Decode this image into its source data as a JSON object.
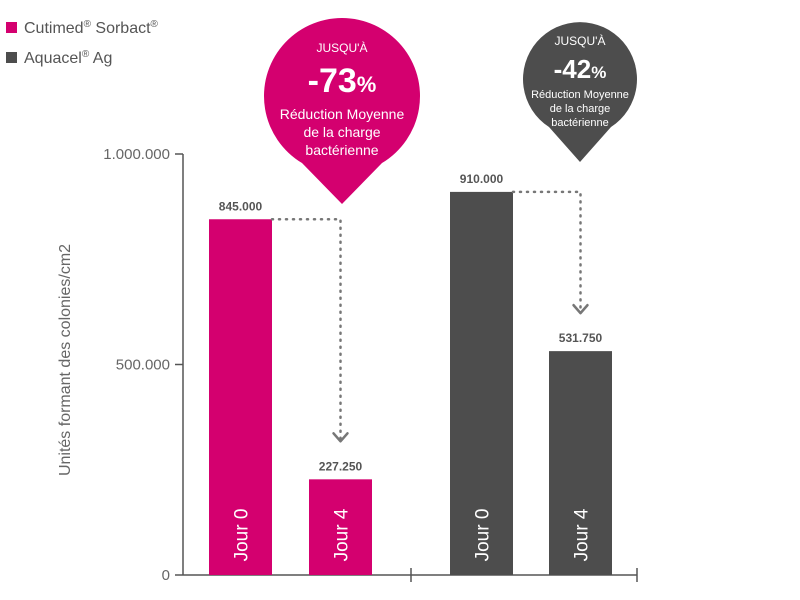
{
  "colors": {
    "pink": "#d4006f",
    "gray": "#4d4d4d",
    "axis": "#555555",
    "dots": "#777777"
  },
  "legend": [
    {
      "name": "Cutimed",
      "sup1": "®",
      "name2": " Sorbact",
      "sup2": "®",
      "color": "#d4006f"
    },
    {
      "name": "Aquacel",
      "sup1": "®",
      "name2": " Ag",
      "sup2": "",
      "color": "#4d4d4d"
    }
  ],
  "callouts": [
    {
      "top": "JUSQU'À",
      "value": "-73",
      "pct": "%",
      "lines": [
        "Réduction Moyenne",
        "de la charge",
        "bactérienne"
      ],
      "color": "#d4006f"
    },
    {
      "top": "JUSQU'À",
      "value": "-42",
      "pct": "%",
      "lines": [
        "Réduction Moyenne",
        "de la charge",
        "bactérienne"
      ],
      "color": "#4d4d4d"
    }
  ],
  "chart_data": {
    "type": "bar",
    "ylabel": "Unités formant des colonies/cm2",
    "ylim": [
      0,
      1000000
    ],
    "yticks": [
      {
        "value": 0,
        "label": "0"
      },
      {
        "value": 500000,
        "label": "500.000"
      },
      {
        "value": 1000000,
        "label": "1.000.000"
      }
    ],
    "groups": [
      {
        "series": "Cutimed® Sorbact®",
        "color": "#d4006f",
        "bars": [
          {
            "category": "Jour 0",
            "value": 845000,
            "label": "845.000"
          },
          {
            "category": "Jour 4",
            "value": 227250,
            "label": "227.250"
          }
        ]
      },
      {
        "series": "Aquacel® Ag",
        "color": "#4d4d4d",
        "bars": [
          {
            "category": "Jour 0",
            "value": 910000,
            "label": "910.000"
          },
          {
            "category": "Jour 4",
            "value": 531750,
            "label": "531.750"
          }
        ]
      }
    ]
  }
}
